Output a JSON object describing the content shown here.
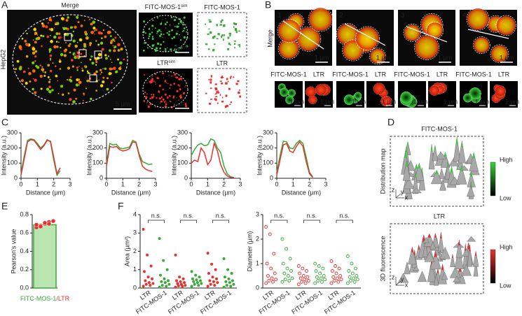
{
  "panel_labels": [
    "A",
    "B",
    "C",
    "D",
    "E",
    "F"
  ],
  "panel_a": {
    "merge": "Merge",
    "cell_line": "HepG2",
    "roi_labels": [
      "1",
      "2",
      "3",
      "4"
    ],
    "scale_bars": [
      "5 µm",
      "5 µm",
      "5 µm"
    ],
    "zoom_fitc": {
      "name": "FITC-MOS-1",
      "sup": "sim"
    },
    "zoom_ltr": {
      "name": "LTR",
      "sup": "sim"
    },
    "mask_fitc": "FITC-MOS-1",
    "mask_ltr": "LTR"
  },
  "panel_b": {
    "merge": "Merge",
    "rois": [
      {
        "label": "1",
        "scale_bar": "1 µm",
        "channels": [
          "FITC-MOS-1",
          "LTR"
        ],
        "channel_scale_bars": [
          "1 µm",
          "1 µm"
        ]
      },
      {
        "label": "2",
        "scale_bar": "1 µm",
        "channels": [
          "FITC-MOS-1",
          "LTR"
        ],
        "channel_scale_bars": [
          "1 µm",
          "1 µm"
        ]
      },
      {
        "label": "3",
        "scale_bar": "1 µm",
        "channels": [
          "FITC-MOS-1",
          "LTR"
        ],
        "channel_scale_bars": [
          "1 µm",
          "1 µm"
        ]
      },
      {
        "label": "4",
        "scale_bar": "1 µm",
        "channels": [
          "FITC-MOS-1",
          "LTR"
        ],
        "channel_scale_bars": [
          "1 µm",
          "1 µm"
        ]
      }
    ]
  },
  "panel_d": {
    "maps": [
      {
        "title": "FITC-MOS-1",
        "title_color": "#3aa83a",
        "side_label": "Distribution map",
        "high": "High",
        "low": "Low",
        "axes": [
          "z",
          "y",
          "x"
        ],
        "color": "#39d13a"
      },
      {
        "title": "LTR",
        "title_color": "#e5322d",
        "side_label": "3D fluorescence",
        "high": "High",
        "low": "Low",
        "axes": [
          "z",
          "y",
          "x"
        ],
        "color": "#e5322d"
      }
    ]
  },
  "chart_data": [
    {
      "type": "line",
      "xlabel": "Distance (µm)",
      "ylabel": "Intensity (a.u.)",
      "x": [
        0,
        0.2,
        0.4,
        0.6,
        0.8,
        1.0,
        1.2,
        1.4,
        1.6,
        1.8,
        2.0,
        2.2,
        2.4
      ],
      "series": [
        {
          "color": "#3aa83a",
          "values": [
            30,
            150,
            250,
            260,
            255,
            230,
            200,
            220,
            255,
            240,
            120,
            20,
            50
          ]
        },
        {
          "color": "#e5322d",
          "values": [
            20,
            130,
            240,
            255,
            250,
            220,
            190,
            215,
            250,
            245,
            140,
            30,
            70
          ]
        }
      ],
      "xlim": [
        0,
        3
      ],
      "ylim": [
        0,
        300
      ],
      "xticks": [
        0,
        1,
        2,
        3
      ],
      "yticks": [
        0,
        100,
        200,
        300
      ]
    },
    {
      "type": "line",
      "xlabel": "Distance (µm)",
      "ylabel": "Intensity (a.u.)",
      "x": [
        0,
        0.2,
        0.4,
        0.6,
        0.8,
        1.0,
        1.2,
        1.4,
        1.6,
        1.8,
        2.0,
        2.2,
        2.4,
        2.6,
        2.8
      ],
      "series": [
        {
          "color": "#3aa83a",
          "values": [
            100,
            230,
            220,
            225,
            200,
            195,
            200,
            205,
            250,
            240,
            160,
            110,
            100,
            90,
            95
          ]
        },
        {
          "color": "#e5322d",
          "values": [
            80,
            210,
            205,
            210,
            190,
            180,
            185,
            195,
            240,
            235,
            150,
            80,
            60,
            50,
            45
          ]
        }
      ],
      "xlim": [
        0,
        3
      ],
      "ylim": [
        0,
        300
      ],
      "xticks": [
        0,
        1,
        2,
        3
      ],
      "yticks": [
        0,
        100,
        200,
        300
      ]
    },
    {
      "type": "line",
      "xlabel": "Distance (µm)",
      "ylabel": "Intensity (a.u.)",
      "x": [
        0,
        0.2,
        0.4,
        0.6,
        0.8,
        1.0,
        1.2,
        1.4,
        1.6,
        1.8,
        2.0,
        2.2,
        2.4,
        2.6
      ],
      "series": [
        {
          "color": "#3aa83a",
          "values": [
            150,
            190,
            220,
            230,
            215,
            220,
            260,
            250,
            200,
            170,
            80,
            30,
            10,
            5
          ]
        },
        {
          "color": "#e5322d",
          "values": [
            100,
            120,
            110,
            200,
            170,
            90,
            120,
            230,
            180,
            90,
            40,
            15,
            5,
            5
          ]
        }
      ],
      "xlim": [
        0,
        3
      ],
      "ylim": [
        0,
        300
      ],
      "xticks": [
        0,
        1,
        2,
        3
      ],
      "yticks": [
        0,
        100,
        200,
        300
      ]
    },
    {
      "type": "line",
      "xlabel": "Distance (µm)",
      "ylabel": "Intensity (a.u.)",
      "x": [
        0,
        0.2,
        0.4,
        0.6,
        0.8,
        1.0,
        1.2,
        1.4,
        1.6,
        1.8,
        2.0,
        2.2
      ],
      "series": [
        {
          "color": "#3aa83a",
          "values": [
            40,
            150,
            245,
            240,
            200,
            195,
            230,
            250,
            230,
            140,
            40,
            10
          ]
        },
        {
          "color": "#e5322d",
          "values": [
            20,
            120,
            220,
            230,
            180,
            170,
            210,
            240,
            210,
            110,
            30,
            5
          ]
        }
      ],
      "xlim": [
        0,
        3
      ],
      "ylim": [
        0,
        300
      ],
      "xticks": [
        0,
        1,
        2,
        3
      ],
      "yticks": [
        0,
        100,
        200,
        300
      ]
    },
    {
      "type": "bar",
      "ylabel": "Pearson's value",
      "xlabel": [
        "FITC-MOS-1",
        "/LTR"
      ],
      "xlabel_colors": [
        "#3aa83a",
        "#e5322d"
      ],
      "values": [
        0.69
      ],
      "color": "#b9e6b0",
      "edge_color": "#3aa83a",
      "points": [
        0.66,
        0.68,
        0.7,
        0.72,
        0.73,
        0.69,
        0.67,
        0.71,
        0.7
      ],
      "point_color": "#e5322d",
      "ylim": [
        0,
        0.8
      ],
      "yticks": [
        {
          "value": 0,
          "label": "0.0"
        },
        {
          "value": 0.2,
          "label": "0.2"
        },
        {
          "value": 0.4,
          "label": "0.4"
        },
        {
          "value": 0.6,
          "label": "0.6"
        },
        {
          "value": 0.8,
          "label": "0.8"
        }
      ]
    },
    {
      "type": "strip",
      "ylabel": "Area (µm²)",
      "marker": "filled",
      "categories": [
        "LTR",
        "FITC-MOS-1",
        "LTR",
        "FITC-MOS-1",
        "LTR",
        "FITC-MOS-1"
      ],
      "colors": [
        "#e5322d",
        "#3aa83a",
        "#e5322d",
        "#3aa83a",
        "#e5322d",
        "#3aa83a"
      ],
      "values": [
        [
          3.2,
          1.8,
          1.2,
          0.9,
          0.6,
          0.5,
          0.4,
          0.3,
          0.25,
          0.2,
          0.15,
          0.1
        ],
        [
          2.7,
          1.5,
          1.0,
          0.7,
          0.5,
          0.4,
          0.35,
          0.3,
          0.2,
          0.15,
          0.1,
          0.05
        ],
        [
          1.8,
          0.6,
          0.5,
          0.4,
          0.35,
          0.3,
          0.25,
          0.2,
          0.15,
          0.12,
          0.1,
          0.05
        ],
        [
          0.9,
          0.7,
          0.6,
          0.5,
          0.45,
          0.4,
          0.35,
          0.3,
          0.25,
          0.2,
          0.15,
          0.1
        ],
        [
          1.9,
          1.3,
          1.0,
          0.8,
          0.6,
          0.5,
          0.4,
          0.35,
          0.3,
          0.2,
          0.15,
          0.1
        ],
        [
          1.6,
          1.0,
          0.8,
          0.6,
          0.5,
          0.4,
          0.35,
          0.3,
          0.2,
          0.15,
          0.1,
          0.05
        ]
      ],
      "annotations": [
        "n.s.",
        "n.s.",
        "n.s."
      ],
      "ylim": [
        0,
        4
      ],
      "yticks": [
        0,
        1,
        2,
        3,
        4
      ]
    },
    {
      "type": "strip",
      "ylabel": "Diameter (µm)",
      "marker": "open",
      "categories": [
        "LTR",
        "FITC-MOS-1",
        "LTR",
        "FITC-MOS-1",
        "LTR",
        "FITC-MOS-1"
      ],
      "colors": [
        "#e5322d",
        "#3aa83a",
        "#e5322d",
        "#3aa83a",
        "#e5322d",
        "#3aa83a"
      ],
      "values": [
        [
          2.5,
          2.2,
          1.4,
          1.0,
          0.8,
          0.6,
          0.5,
          0.4,
          0.35,
          0.3,
          0.25,
          0.2
        ],
        [
          2.0,
          1.6,
          1.2,
          1.0,
          0.8,
          0.7,
          0.6,
          0.5,
          0.4,
          0.35,
          0.3,
          0.25
        ],
        [
          0.9,
          0.8,
          0.7,
          0.6,
          0.5,
          0.45,
          0.4,
          0.35,
          0.3,
          0.25,
          0.2,
          0.15
        ],
        [
          1.0,
          0.9,
          0.8,
          0.7,
          0.6,
          0.5,
          0.45,
          0.4,
          0.35,
          0.3,
          0.25,
          0.2
        ],
        [
          1.1,
          0.9,
          0.8,
          0.7,
          0.6,
          0.5,
          0.45,
          0.4,
          0.35,
          0.3,
          0.25,
          0.2
        ],
        [
          1.3,
          1.0,
          0.8,
          0.7,
          0.6,
          0.5,
          0.45,
          0.4,
          0.35,
          0.3,
          0.25,
          0.2
        ]
      ],
      "annotations": [
        "n.s.",
        "n.s.",
        "n.s."
      ],
      "ylim": [
        0,
        3
      ],
      "yticks": [
        0,
        1,
        2,
        3
      ]
    }
  ]
}
